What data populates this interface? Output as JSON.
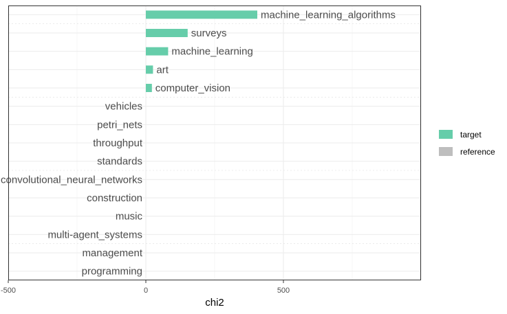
{
  "chart_data": {
    "type": "bar",
    "orientation": "horizontal",
    "categories": [
      "machine_learning_algorithms",
      "surveys",
      "machine_learning",
      "art",
      "computer_vision",
      "vehicles",
      "petri_nets",
      "throughput",
      "standards",
      "convolutional_neural_networks",
      "construction",
      "music",
      "multi-agent_systems",
      "management",
      "programming"
    ],
    "series": [
      {
        "name": "target",
        "color": "#66cdaa",
        "values": [
          405,
          152,
          81,
          26,
          22,
          0,
          0,
          0,
          0,
          0,
          0,
          0,
          0,
          0,
          0
        ]
      },
      {
        "name": "reference",
        "color": "#bebebe",
        "values": [
          0,
          0,
          0,
          0,
          0,
          0,
          0,
          0,
          0,
          0,
          0,
          0,
          0,
          0,
          0
        ]
      }
    ],
    "xlabel": "chi2",
    "ylabel": "",
    "xlim": [
      -500,
      1000
    ],
    "xticks": [
      -500,
      0,
      500
    ],
    "grid": true,
    "legend_position": "right"
  }
}
